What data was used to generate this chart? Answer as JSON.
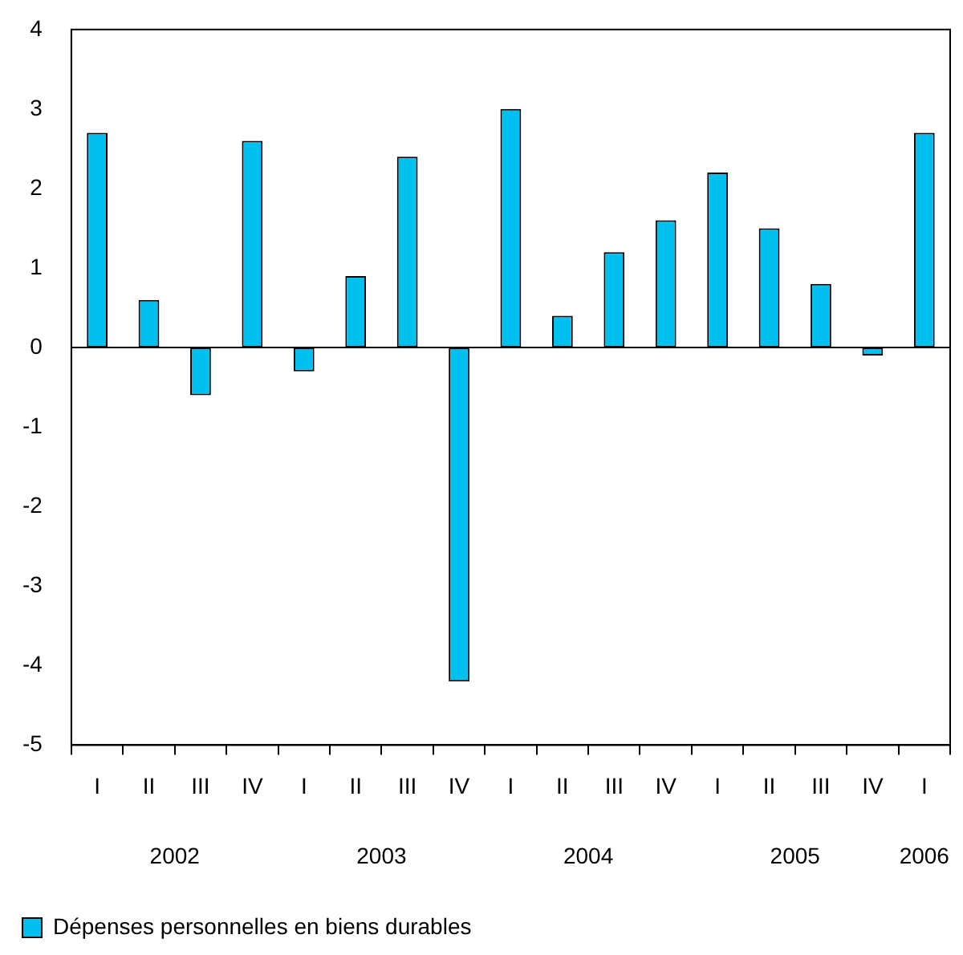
{
  "chart_data": {
    "type": "bar",
    "categories": [
      "I",
      "II",
      "III",
      "IV",
      "I",
      "II",
      "III",
      "IV",
      "I",
      "II",
      "III",
      "IV",
      "I",
      "II",
      "III",
      "IV",
      "I"
    ],
    "series": [
      {
        "name": "Dépenses personnelles en biens durables",
        "color": "#00c0f0",
        "values": [
          2.7,
          0.6,
          -0.6,
          2.6,
          -0.3,
          0.9,
          2.4,
          -4.2,
          3.0,
          0.4,
          1.2,
          1.6,
          2.2,
          1.5,
          0.8,
          -0.1,
          2.7
        ]
      }
    ],
    "annotations": [
      "2002",
      "2003",
      "2004",
      "2005",
      "2006"
    ],
    "ylim": [
      -5,
      4
    ],
    "yticks": [
      -5,
      -4,
      -3,
      -2,
      -1,
      0,
      1,
      2,
      3,
      4
    ],
    "legend": "bottom left"
  }
}
